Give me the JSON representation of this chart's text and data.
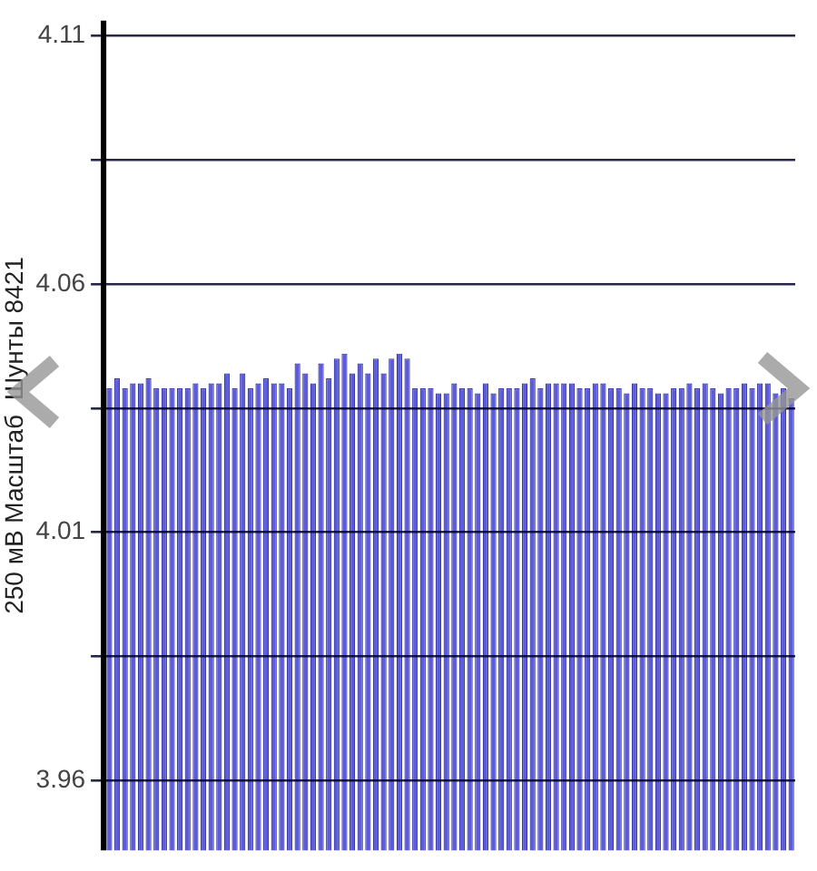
{
  "chart_data": {
    "type": "bar",
    "ylabel": "250 мВ Масштаб  Шунты 8421",
    "categories": [
      null,
      null,
      null,
      null,
      null,
      null,
      null,
      null,
      null,
      null,
      null,
      null,
      null,
      null,
      null,
      null,
      null,
      null,
      null,
      null,
      null,
      null,
      null,
      null,
      null,
      null,
      null,
      null,
      null,
      null,
      null,
      null,
      null,
      null,
      null,
      null,
      null,
      null,
      null,
      null,
      null,
      null,
      null,
      null,
      null,
      null,
      null,
      null,
      null,
      null,
      null,
      null,
      null,
      null,
      null,
      null,
      null,
      null,
      null,
      null,
      null,
      null,
      null,
      null,
      null,
      null,
      null,
      null,
      null,
      null,
      null,
      null,
      null,
      null,
      null,
      null,
      null,
      null,
      null,
      null,
      null,
      null,
      null,
      null,
      null,
      null,
      null,
      null
    ],
    "values": [
      4.039,
      4.041,
      4.039,
      4.04,
      4.04,
      4.041,
      4.039,
      4.039,
      4.039,
      4.039,
      4.039,
      4.04,
      4.039,
      4.04,
      4.04,
      4.042,
      4.039,
      4.042,
      4.039,
      4.04,
      4.041,
      4.04,
      4.04,
      4.039,
      4.044,
      4.042,
      4.04,
      4.044,
      4.041,
      4.045,
      4.046,
      4.042,
      4.044,
      4.042,
      4.045,
      4.042,
      4.045,
      4.046,
      4.045,
      4.039,
      4.039,
      4.039,
      4.038,
      4.038,
      4.04,
      4.039,
      4.039,
      4.038,
      4.04,
      4.038,
      4.039,
      4.039,
      4.039,
      4.04,
      4.041,
      4.039,
      4.04,
      4.04,
      4.04,
      4.04,
      4.039,
      4.039,
      4.04,
      4.04,
      4.039,
      4.039,
      4.038,
      4.04,
      4.039,
      4.039,
      4.038,
      4.038,
      4.039,
      4.039,
      4.04,
      4.039,
      4.04,
      4.039,
      4.038,
      4.039,
      4.039,
      4.04,
      4.039,
      4.04,
      4.04,
      4.038,
      4.039,
      4.037
    ],
    "color": "#5b5bdb",
    "ylim": [
      3.946,
      4.113
    ],
    "yticks": [
      4.11,
      {
        "value": 4.085,
        "label": null
      },
      4.06,
      {
        "value": 4.035,
        "label": null
      },
      4.01,
      {
        "value": 3.985,
        "label": null
      },
      3.96
    ],
    "grid": "y",
    "tick_labels": "y"
  }
}
